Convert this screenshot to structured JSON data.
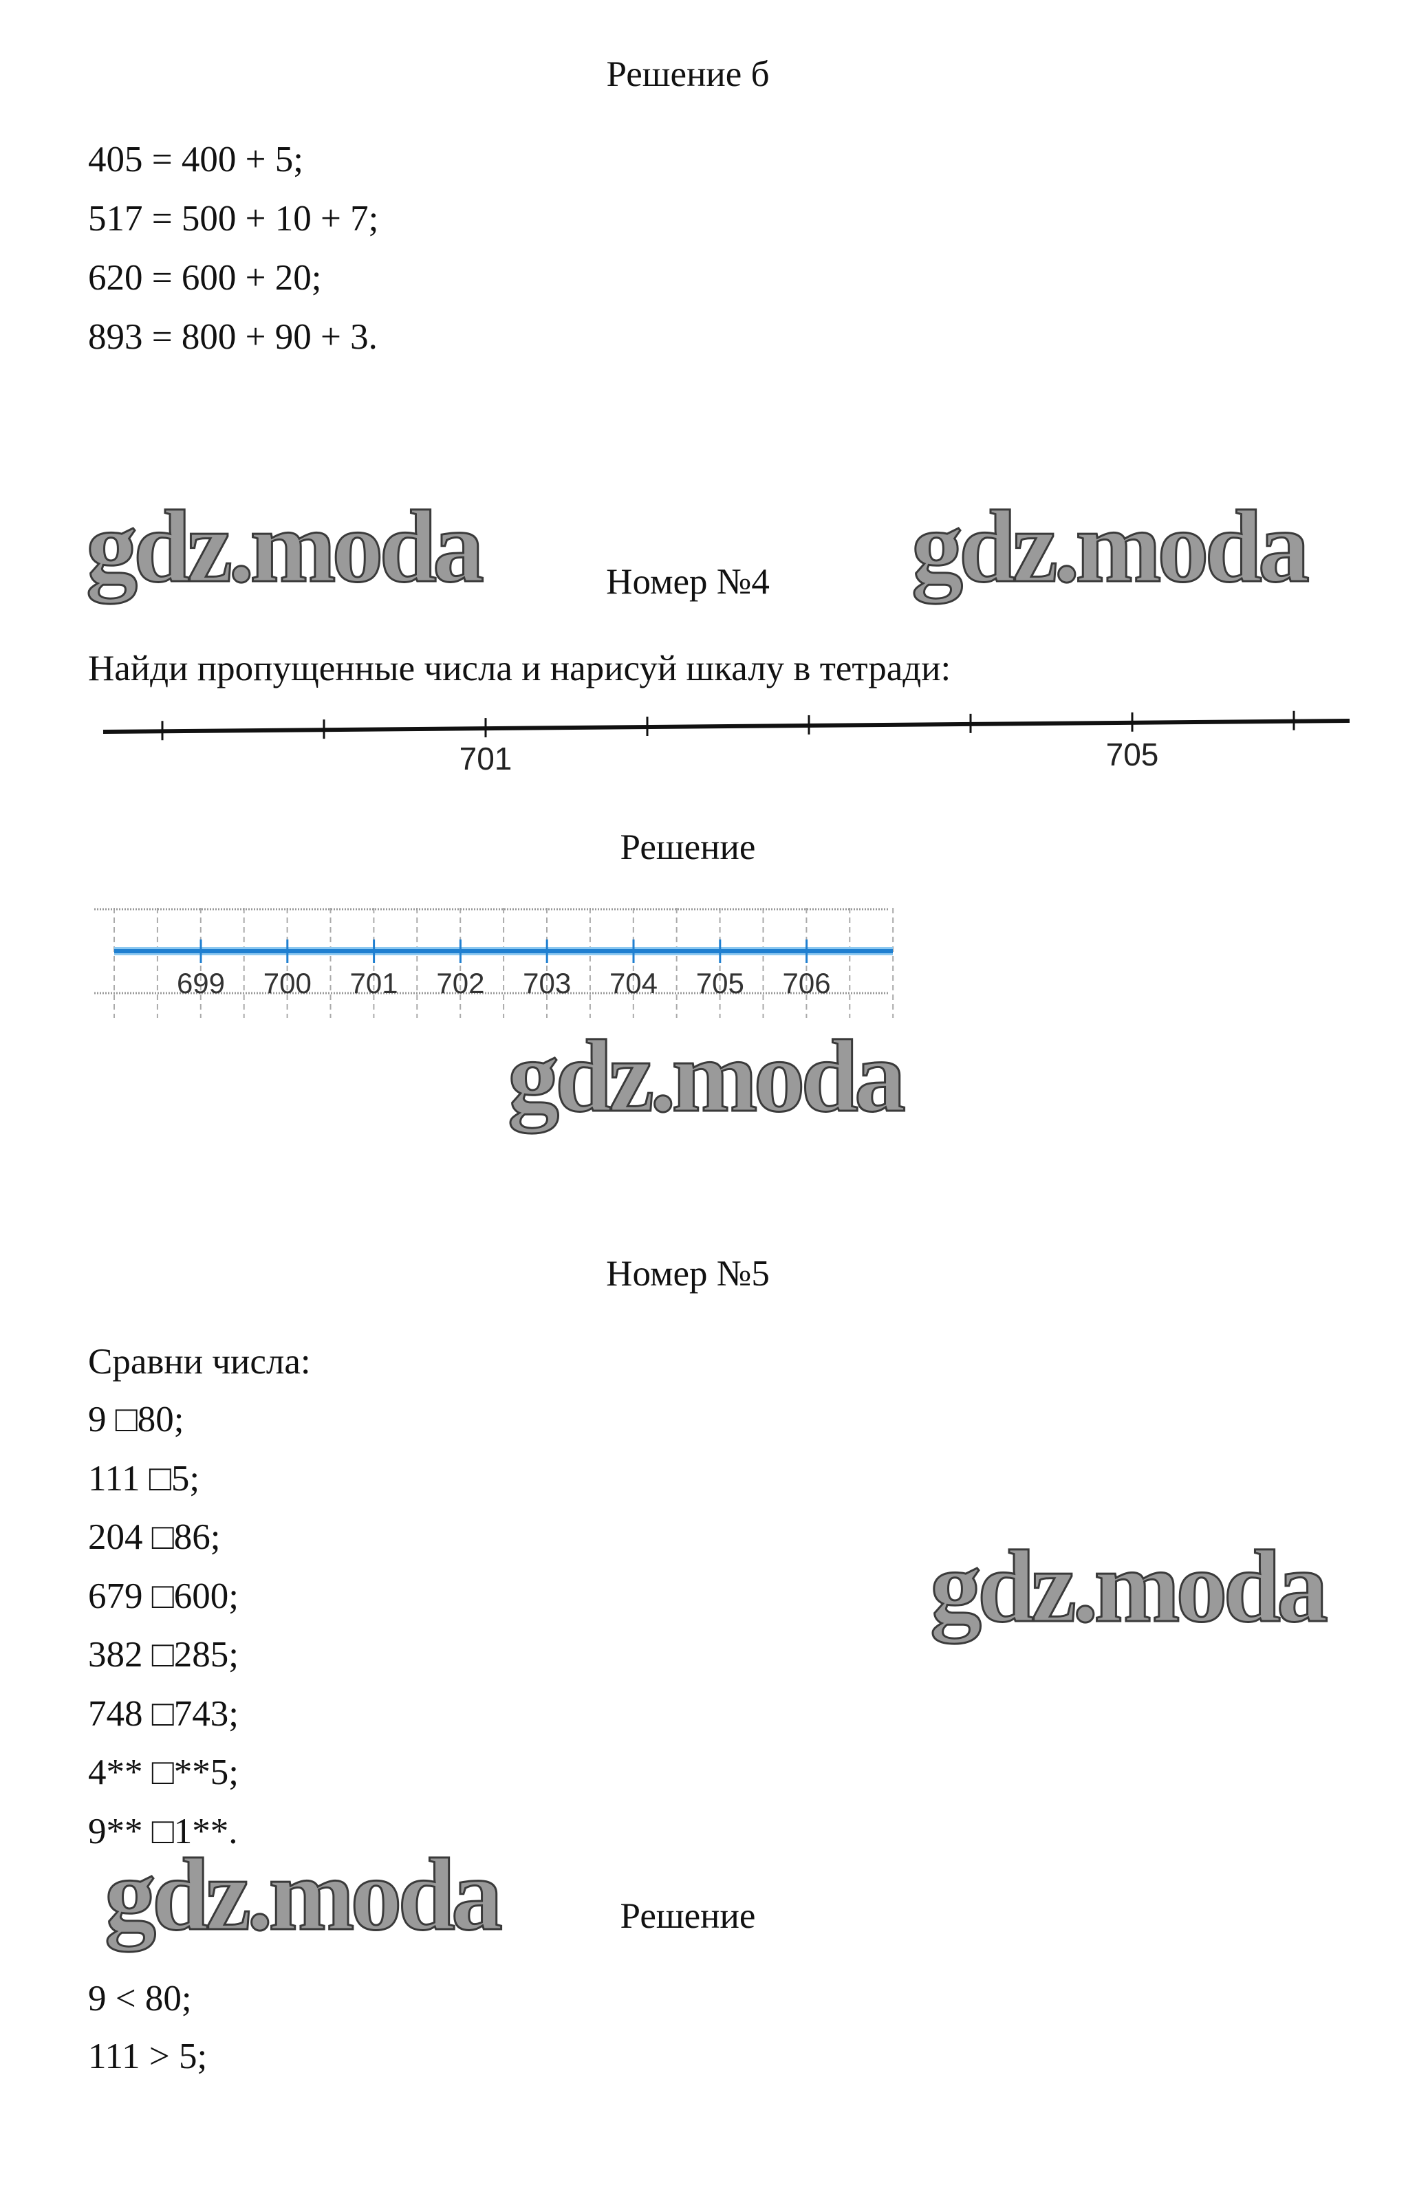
{
  "section_b": {
    "title": "Решение б",
    "lines": [
      "405 = 400 + 5;",
      "517 = 500 + 10 + 7;",
      "620 = 600 + 20;",
      "893 = 800 + 90 + 3."
    ]
  },
  "watermark": "gdz.moda",
  "task4": {
    "title": "Номер №4",
    "prompt": "Найди пропущенные числа и нарисуй шкалу в тетради:",
    "scale_labels": [
      {
        "tick": 2,
        "text": "701"
      },
      {
        "tick": 6,
        "text": "705"
      }
    ],
    "solution_title": "Решение",
    "solution_labels": [
      "699",
      "700",
      "701",
      "702",
      "703",
      "704",
      "705",
      "706"
    ],
    "solution_line_color": "#1f7fd0"
  },
  "task5": {
    "title": "Номер №5",
    "prompt": "Сравни числа:",
    "items": [
      "9 □80;",
      "111 □5;",
      "204 □86;",
      "679 □600;",
      "382 □285;",
      "748 □743;",
      "4** □**5;",
      "9** □1**."
    ],
    "solution_title": "Решение",
    "solution": [
      "9 < 80;",
      "111 > 5;"
    ]
  }
}
